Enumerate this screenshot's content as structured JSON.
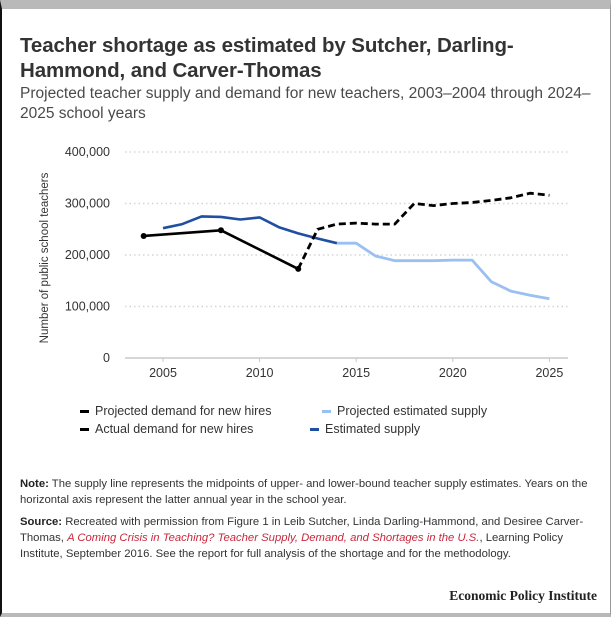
{
  "header": {
    "title": "Teacher shortage as estimated by Sutcher, Darling-Hammond, and Carver-Thomas",
    "subtitle": "Projected teacher supply and demand for new teachers, 2003–2004 through 2024–2025 school years"
  },
  "legend": {
    "items": [
      {
        "label": "Projected demand for new hires",
        "color": "#000000",
        "style": "dashed"
      },
      {
        "label": "Projected estimated supply",
        "color": "#9abff2",
        "style": "solid"
      },
      {
        "label": "Actual demand for new hires",
        "color": "#000000",
        "style": "solid"
      },
      {
        "label": "Estimated supply",
        "color": "#1f4fa0",
        "style": "solid"
      }
    ]
  },
  "footer": {
    "note_label": "Note:",
    "note_text": " The supply line represents the midpoints of upper- and lower-bound teacher supply estimates. Years on the horizontal axis represent the latter annual year in the school year.",
    "source_label": "Source:",
    "source_text_1": " Recreated with permission from Figure 1 in Leib Sutcher, Linda Darling-Hammond, and Desiree Carver-Thomas, ",
    "source_link": "A Coming Crisis in Teaching? Teacher Supply, Demand, and Shortages in the U.S.",
    "source_text_2": ", Learning Policy Institute, September 2016. See the report for full analysis of the shortage and for the methodology.",
    "branding": "Economic Policy Institute"
  },
  "colors": {
    "actual_demand": "#000000",
    "projected_demand": "#000000",
    "estimated_supply": "#1f4fa0",
    "projected_supply": "#9abff2",
    "gridline": "#d5d5d5",
    "axis": "#c8c8c8",
    "link": "#c8283c"
  },
  "chart_data": {
    "type": "line",
    "title": "Teacher shortage as estimated by Sutcher, Darling-Hammond, and Carver-Thomas",
    "subtitle": "Projected teacher supply and demand for new teachers, 2003–2004 through 2024–2025 school years",
    "xlabel": "",
    "ylabel": "Number of public school teachers",
    "xlim": [
      2003,
      2026
    ],
    "ylim": [
      0,
      400000
    ],
    "x_ticks": [
      2005,
      2010,
      2015,
      2020,
      2025
    ],
    "y_ticks": [
      0,
      100000,
      200000,
      300000,
      400000
    ],
    "y_tick_labels": [
      "0",
      "100,000",
      "200,000",
      "300,000",
      "400,000"
    ],
    "grid": "horizontal dotted",
    "legend_position": "bottom",
    "series": [
      {
        "name": "Actual demand for new hires",
        "style": "solid",
        "markers": true,
        "x": [
          2004,
          2008,
          2012
        ],
        "values": [
          237000,
          248000,
          173000
        ]
      },
      {
        "name": "Projected demand for new hires",
        "style": "dashed",
        "x": [
          2012,
          2013,
          2014,
          2015,
          2016,
          2017,
          2018,
          2019,
          2020,
          2021,
          2022,
          2023,
          2024,
          2025
        ],
        "values": [
          173000,
          250000,
          260000,
          262000,
          260000,
          260000,
          300000,
          296000,
          300000,
          302000,
          306000,
          311000,
          320000,
          316000
        ]
      },
      {
        "name": "Estimated supply",
        "style": "solid",
        "x": [
          2005,
          2006,
          2007,
          2008,
          2009,
          2010,
          2011,
          2012,
          2013,
          2014
        ],
        "values": [
          252000,
          260000,
          275000,
          274000,
          269000,
          273000,
          254000,
          242000,
          232000,
          223000
        ]
      },
      {
        "name": "Projected estimated supply",
        "style": "solid",
        "x": [
          2014,
          2015,
          2016,
          2017,
          2018,
          2019,
          2020,
          2021,
          2022,
          2023,
          2024,
          2025
        ],
        "values": [
          223000,
          223000,
          198000,
          189000,
          189000,
          189000,
          190000,
          190000,
          148000,
          130000,
          122000,
          115000
        ]
      }
    ]
  }
}
